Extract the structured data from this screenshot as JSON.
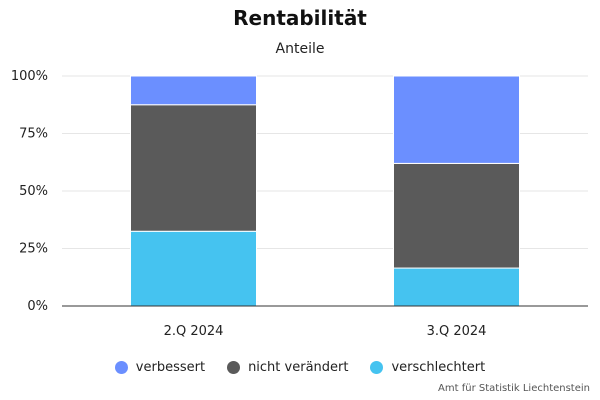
{
  "chart_data": {
    "type": "bar",
    "stacked": true,
    "title": "Rentabilität",
    "subtitle": "Anteile",
    "categories": [
      "2.Q 2024",
      "3.Q 2024"
    ],
    "series": [
      {
        "name": "verschlechtert",
        "values": [
          32.5,
          16.5
        ],
        "color": "#45c3f0"
      },
      {
        "name": "nicht verändert",
        "values": [
          55.0,
          45.5
        ],
        "color": "#5a5a5a"
      },
      {
        "name": "verbessert",
        "values": [
          12.5,
          38.0
        ],
        "color": "#6b8fff"
      }
    ],
    "legend_order": [
      "verbessert",
      "nicht verändert",
      "verschlechtert"
    ],
    "yticks": [
      "0%",
      "25%",
      "50%",
      "75%",
      "100%"
    ],
    "ylim": [
      0,
      100
    ],
    "grid": true,
    "legend_position": "bottom"
  },
  "credits": "Amt für Statistik Liechtenstein"
}
